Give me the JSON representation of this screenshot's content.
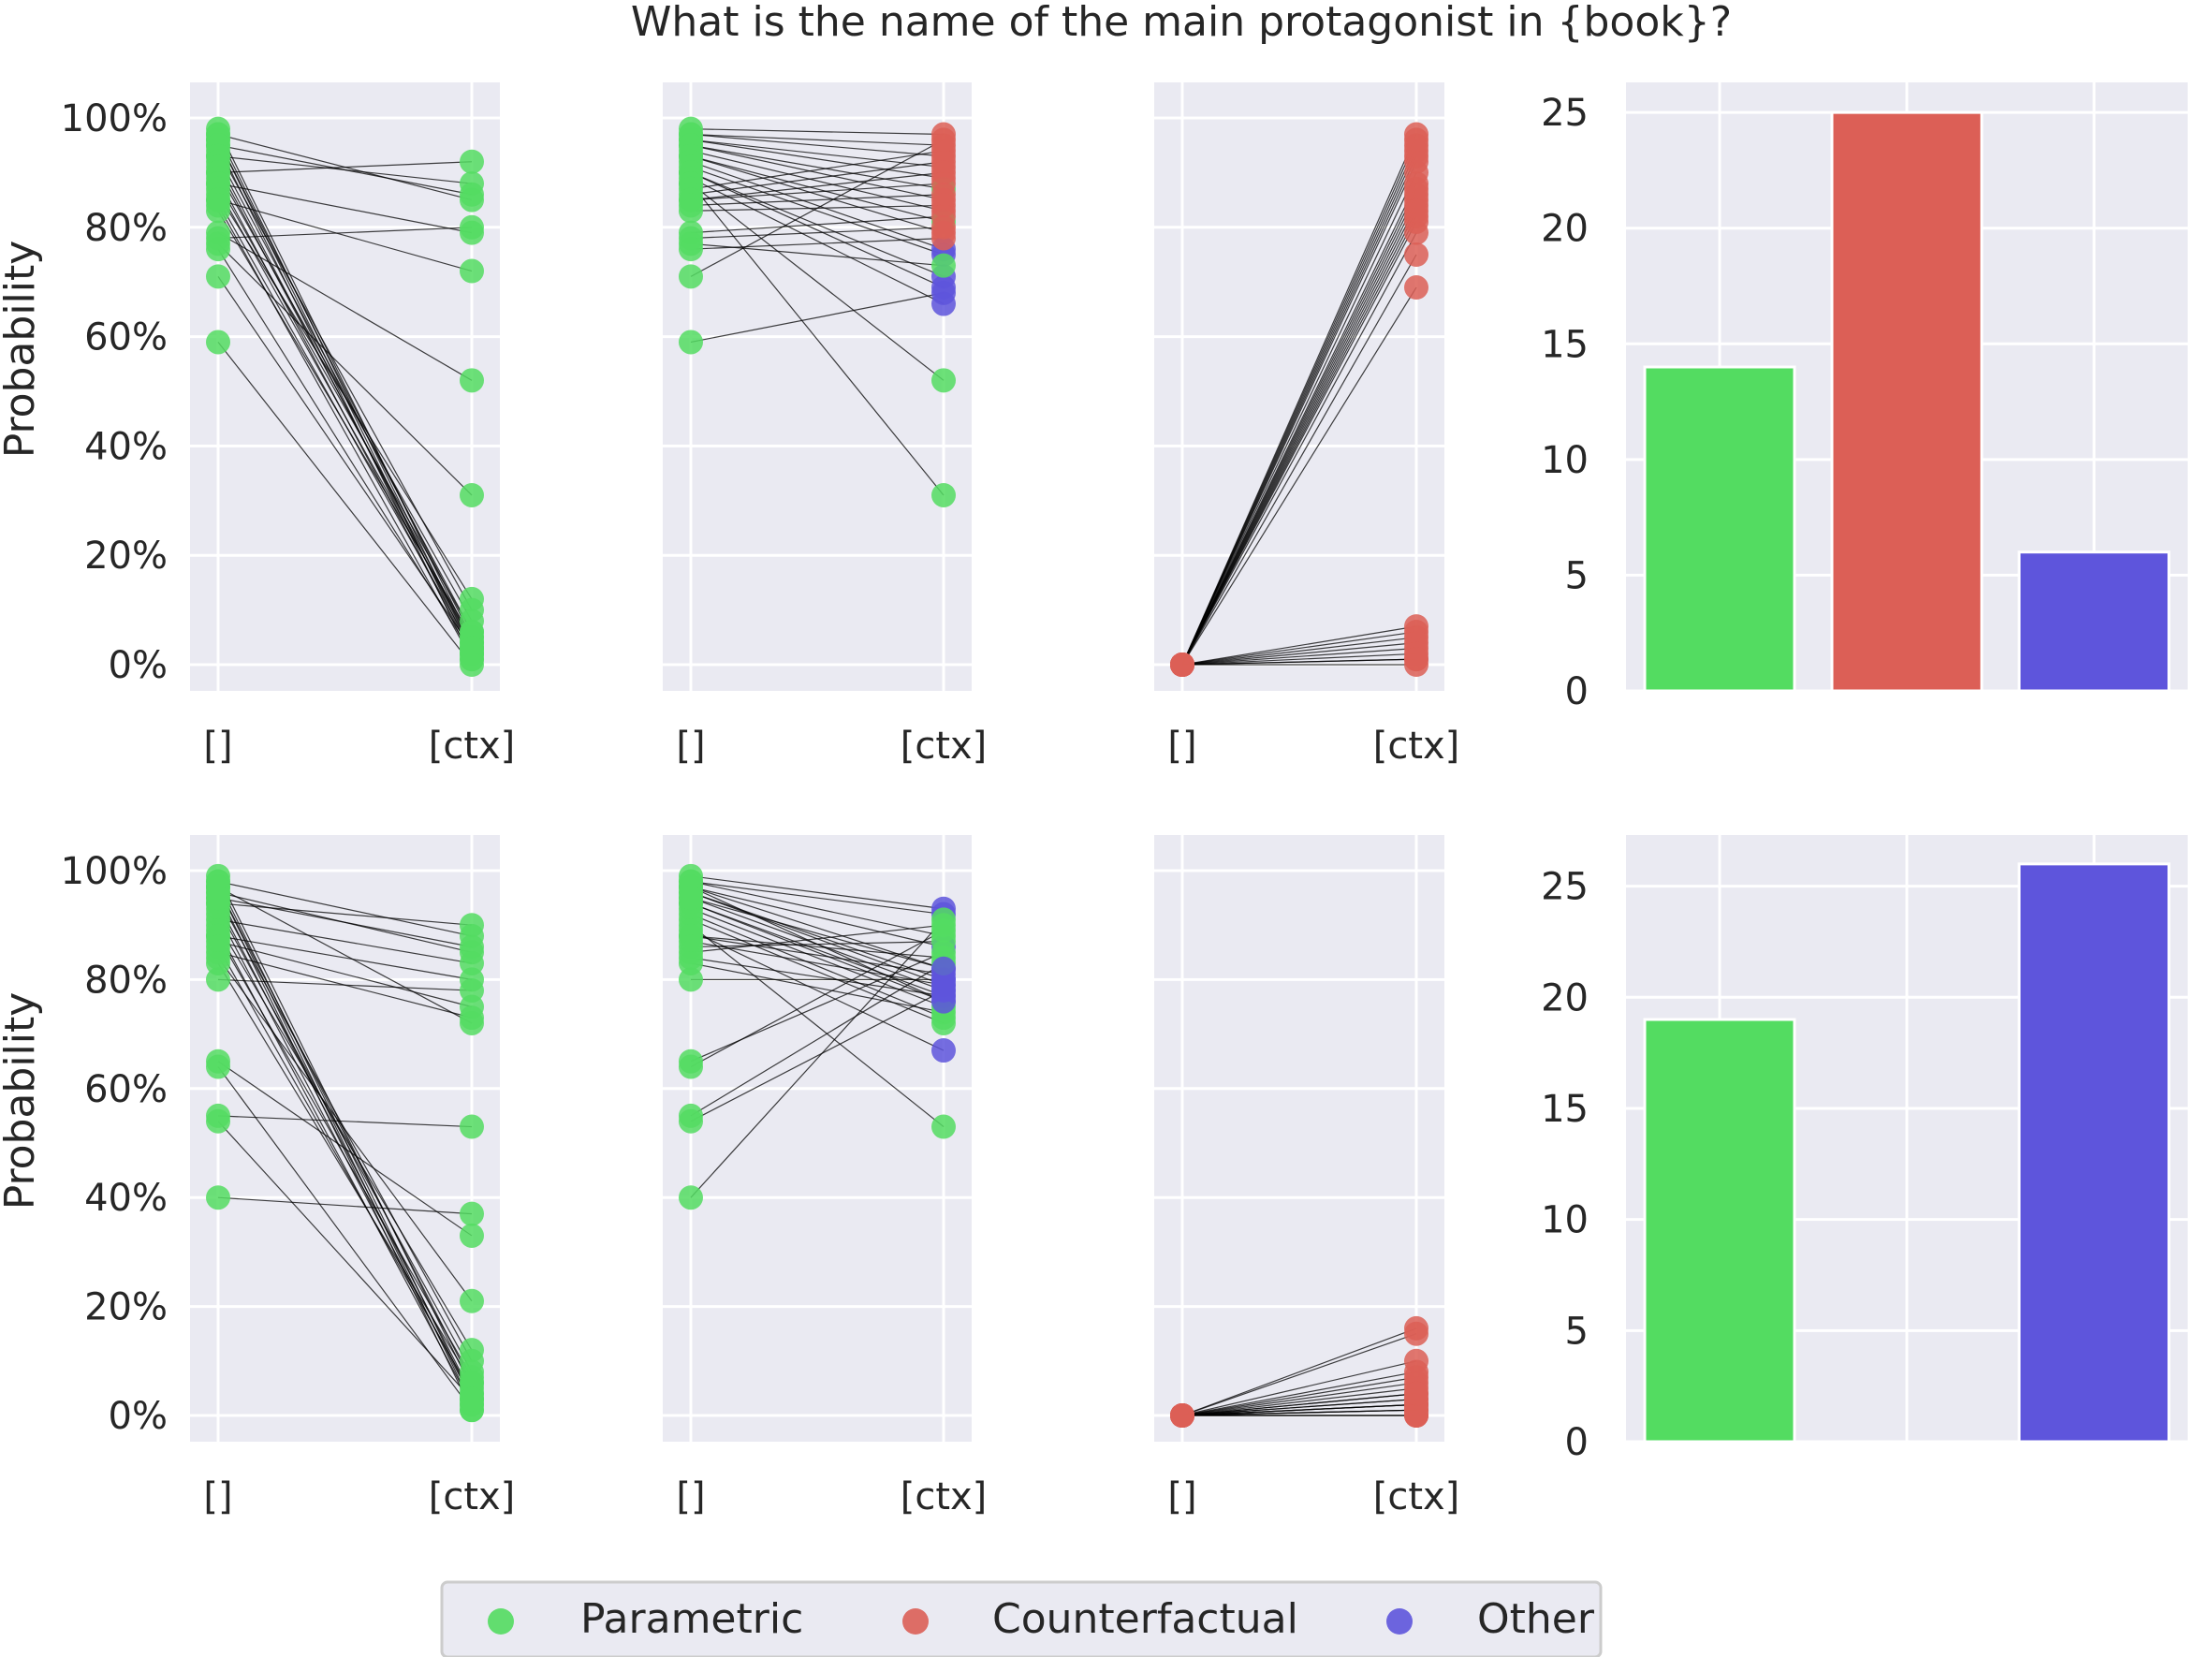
{
  "title": "What is the name of the main protagonist in {book}?",
  "colors": {
    "Parametric": "#53dc61",
    "Counterfactual": "#dc5f56",
    "Other": "#5e55dc",
    "panel_bg": "#eaeaf2",
    "grid": "#ffffff",
    "line": "#000000"
  },
  "legend": {
    "items": [
      {
        "label": "Parametric",
        "color": "#53dc61"
      },
      {
        "label": "Counterfactual",
        "color": "#dc5f56"
      },
      {
        "label": "Other",
        "color": "#5e55dc"
      }
    ]
  },
  "chart_data": [
    {
      "type": "scatter",
      "panel": "row1-col1",
      "ylabel": "Probability",
      "x_categories": [
        "[]",
        "[ctx]"
      ],
      "ylim": [
        0,
        100
      ],
      "yticks": [
        "0%",
        "20%",
        "40%",
        "60%",
        "80%",
        "100%"
      ],
      "grid": true,
      "pairs": [
        [
          98,
          4,
          "Parametric"
        ],
        [
          97,
          3,
          "Parametric"
        ],
        [
          97,
          85,
          "Parametric"
        ],
        [
          96,
          2,
          "Parametric"
        ],
        [
          96,
          5,
          "Parametric"
        ],
        [
          95,
          86,
          "Parametric"
        ],
        [
          95,
          1,
          "Parametric"
        ],
        [
          94,
          10,
          "Parametric"
        ],
        [
          93,
          6,
          "Parametric"
        ],
        [
          93,
          88,
          "Parametric"
        ],
        [
          92,
          3,
          "Parametric"
        ],
        [
          91,
          4,
          "Parametric"
        ],
        [
          90,
          8,
          "Parametric"
        ],
        [
          90,
          92,
          "Parametric"
        ],
        [
          89,
          2,
          "Parametric"
        ],
        [
          88,
          6,
          "Parametric"
        ],
        [
          88,
          79,
          "Parametric"
        ],
        [
          87,
          4,
          "Parametric"
        ],
        [
          86,
          12,
          "Parametric"
        ],
        [
          85,
          3,
          "Parametric"
        ],
        [
          85,
          72,
          "Parametric"
        ],
        [
          84,
          1,
          "Parametric"
        ],
        [
          83,
          5,
          "Parametric"
        ],
        [
          79,
          52,
          "Parametric"
        ],
        [
          78,
          80,
          "Parametric"
        ],
        [
          77,
          31,
          "Parametric"
        ],
        [
          76,
          2,
          "Parametric"
        ],
        [
          71,
          3,
          "Parametric"
        ],
        [
          59,
          0,
          "Parametric"
        ]
      ]
    },
    {
      "type": "scatter",
      "panel": "row1-col2",
      "x_categories": [
        "[]",
        "[ctx]"
      ],
      "ylim": [
        0,
        100
      ],
      "grid": true,
      "pairs": [
        [
          98,
          97,
          "Counterfactual"
        ],
        [
          97,
          95,
          "Counterfactual"
        ],
        [
          97,
          93,
          "Counterfactual"
        ],
        [
          96,
          91,
          "Counterfactual"
        ],
        [
          96,
          89,
          "Counterfactual"
        ],
        [
          95,
          87,
          "Parametric"
        ],
        [
          95,
          85,
          "Counterfactual"
        ],
        [
          94,
          83,
          "Counterfactual"
        ],
        [
          93,
          81,
          "Parametric"
        ],
        [
          93,
          79,
          "Counterfactual"
        ],
        [
          92,
          76,
          "Other"
        ],
        [
          91,
          75,
          "Other"
        ],
        [
          90,
          71,
          "Other"
        ],
        [
          90,
          69,
          "Other"
        ],
        [
          89,
          66,
          "Other"
        ],
        [
          88,
          52,
          "Parametric"
        ],
        [
          88,
          31,
          "Parametric"
        ],
        [
          87,
          94,
          "Counterfactual"
        ],
        [
          86,
          92,
          "Counterfactual"
        ],
        [
          85,
          90,
          "Counterfactual"
        ],
        [
          85,
          88,
          "Counterfactual"
        ],
        [
          84,
          86,
          "Counterfactual"
        ],
        [
          83,
          84,
          "Counterfactual"
        ],
        [
          79,
          82,
          "Counterfactual"
        ],
        [
          78,
          80,
          "Counterfactual"
        ],
        [
          77,
          73,
          "Parametric"
        ],
        [
          76,
          78,
          "Counterfactual"
        ],
        [
          71,
          96,
          "Counterfactual"
        ],
        [
          59,
          68,
          "Other"
        ]
      ]
    },
    {
      "type": "scatter",
      "panel": "row1-col3",
      "x_categories": [
        "[]",
        "[ctx]"
      ],
      "ylim": [
        0,
        100
      ],
      "grid": true,
      "pairs": [
        [
          0,
          97,
          "Counterfactual"
        ],
        [
          0,
          95,
          "Counterfactual"
        ],
        [
          0,
          93,
          "Counterfactual"
        ],
        [
          0,
          92,
          "Counterfactual"
        ],
        [
          0,
          90,
          "Counterfactual"
        ],
        [
          0,
          88,
          "Counterfactual"
        ],
        [
          0,
          86,
          "Counterfactual"
        ],
        [
          0,
          85,
          "Counterfactual"
        ],
        [
          0,
          84,
          "Counterfactual"
        ],
        [
          0,
          82,
          "Counterfactual"
        ],
        [
          0,
          81,
          "Counterfactual"
        ],
        [
          0,
          79,
          "Counterfactual"
        ],
        [
          0,
          75,
          "Counterfactual"
        ],
        [
          0,
          69,
          "Counterfactual"
        ],
        [
          0,
          94,
          "Counterfactual"
        ],
        [
          0,
          96,
          "Counterfactual"
        ],
        [
          0,
          87,
          "Counterfactual"
        ],
        [
          0,
          83,
          "Counterfactual"
        ],
        [
          0,
          7,
          "Counterfactual"
        ],
        [
          0,
          6,
          "Counterfactual"
        ],
        [
          0,
          5,
          "Counterfactual"
        ],
        [
          0,
          4,
          "Counterfactual"
        ],
        [
          0,
          3,
          "Counterfactual"
        ],
        [
          0,
          2,
          "Counterfactual"
        ],
        [
          0,
          1,
          "Counterfactual"
        ],
        [
          0,
          0,
          "Counterfactual"
        ],
        [
          0,
          1,
          "Counterfactual"
        ]
      ]
    },
    {
      "type": "bar",
      "panel": "row1-col4",
      "categories": [
        "Parametric",
        "Counterfactual",
        "Other"
      ],
      "values": [
        14,
        25,
        6
      ],
      "ylim": [
        0,
        26.3
      ],
      "yticks": [
        "0",
        "5",
        "10",
        "15",
        "20",
        "25"
      ],
      "grid": true
    },
    {
      "type": "scatter",
      "panel": "row2-col1",
      "ylabel": "Probability",
      "x_categories": [
        "[]",
        "[ctx]"
      ],
      "ylim": [
        0,
        100
      ],
      "yticks": [
        "0%",
        "20%",
        "40%",
        "60%",
        "80%",
        "100%"
      ],
      "grid": true,
      "pairs": [
        [
          99,
          5,
          "Parametric"
        ],
        [
          98,
          3,
          "Parametric"
        ],
        [
          98,
          88,
          "Parametric"
        ],
        [
          97,
          2,
          "Parametric"
        ],
        [
          97,
          6,
          "Parametric"
        ],
        [
          96,
          85,
          "Parametric"
        ],
        [
          96,
          1,
          "Parametric"
        ],
        [
          95,
          10,
          "Parametric"
        ],
        [
          94,
          4,
          "Parametric"
        ],
        [
          94,
          90,
          "Parametric"
        ],
        [
          93,
          8,
          "Parametric"
        ],
        [
          92,
          3,
          "Parametric"
        ],
        [
          91,
          83,
          "Parametric"
        ],
        [
          90,
          12,
          "Parametric"
        ],
        [
          89,
          2,
          "Parametric"
        ],
        [
          88,
          80,
          "Parametric"
        ],
        [
          88,
          7,
          "Parametric"
        ],
        [
          87,
          75,
          "Parametric"
        ],
        [
          86,
          4,
          "Parametric"
        ],
        [
          85,
          73,
          "Parametric"
        ],
        [
          84,
          21,
          "Parametric"
        ],
        [
          83,
          6,
          "Parametric"
        ],
        [
          80,
          78,
          "Parametric"
        ],
        [
          65,
          33,
          "Parametric"
        ],
        [
          64,
          1,
          "Parametric"
        ],
        [
          55,
          53,
          "Parametric"
        ],
        [
          54,
          3,
          "Parametric"
        ],
        [
          40,
          37,
          "Parametric"
        ],
        [
          97,
          72,
          "Parametric"
        ],
        [
          95,
          86,
          "Parametric"
        ]
      ]
    },
    {
      "type": "scatter",
      "panel": "row2-col2",
      "x_categories": [
        "[]",
        "[ctx]"
      ],
      "ylim": [
        0,
        100
      ],
      "grid": true,
      "pairs": [
        [
          99,
          93,
          "Other"
        ],
        [
          98,
          92,
          "Other"
        ],
        [
          98,
          88,
          "Parametric"
        ],
        [
          97,
          86,
          "Other"
        ],
        [
          97,
          82,
          "Other"
        ],
        [
          96,
          80,
          "Other"
        ],
        [
          96,
          79,
          "Other"
        ],
        [
          95,
          78,
          "Other"
        ],
        [
          94,
          77,
          "Other"
        ],
        [
          94,
          76,
          "Other"
        ],
        [
          93,
          75,
          "Parametric"
        ],
        [
          92,
          73,
          "Parametric"
        ],
        [
          91,
          72,
          "Parametric"
        ],
        [
          90,
          53,
          "Parametric"
        ],
        [
          89,
          67,
          "Other"
        ],
        [
          88,
          81,
          "Other"
        ],
        [
          88,
          84,
          "Parametric"
        ],
        [
          87,
          79,
          "Other"
        ],
        [
          86,
          87,
          "Parametric"
        ],
        [
          85,
          90,
          "Parametric"
        ],
        [
          84,
          77,
          "Other"
        ],
        [
          83,
          74,
          "Parametric"
        ],
        [
          80,
          80,
          "Other"
        ],
        [
          65,
          85,
          "Parametric"
        ],
        [
          64,
          89,
          "Parametric"
        ],
        [
          55,
          83,
          "Parametric"
        ],
        [
          54,
          78,
          "Other"
        ],
        [
          40,
          91,
          "Parametric"
        ],
        [
          97,
          76,
          "Other"
        ],
        [
          95,
          82,
          "Other"
        ]
      ]
    },
    {
      "type": "scatter",
      "panel": "row2-col3",
      "x_categories": [
        "[]",
        "[ctx]"
      ],
      "ylim": [
        0,
        100
      ],
      "grid": true,
      "pairs": [
        [
          0,
          16,
          "Counterfactual"
        ],
        [
          0,
          15,
          "Counterfactual"
        ],
        [
          0,
          10,
          "Counterfactual"
        ],
        [
          0,
          8,
          "Counterfactual"
        ],
        [
          0,
          7,
          "Counterfactual"
        ],
        [
          0,
          6,
          "Counterfactual"
        ],
        [
          0,
          5,
          "Counterfactual"
        ],
        [
          0,
          4,
          "Counterfactual"
        ],
        [
          0,
          3,
          "Counterfactual"
        ],
        [
          0,
          3,
          "Counterfactual"
        ],
        [
          0,
          2,
          "Counterfactual"
        ],
        [
          0,
          2,
          "Counterfactual"
        ],
        [
          0,
          1,
          "Counterfactual"
        ],
        [
          0,
          1,
          "Counterfactual"
        ],
        [
          0,
          0,
          "Counterfactual"
        ],
        [
          0,
          0,
          "Counterfactual"
        ],
        [
          0,
          0,
          "Counterfactual"
        ],
        [
          0,
          1,
          "Counterfactual"
        ],
        [
          0,
          2,
          "Counterfactual"
        ],
        [
          0,
          4,
          "Counterfactual"
        ]
      ]
    },
    {
      "type": "bar",
      "panel": "row2-col4",
      "categories": [
        "Parametric",
        "Counterfactual",
        "Other"
      ],
      "values": [
        19,
        0,
        26
      ],
      "ylim": [
        0,
        27.3
      ],
      "yticks": [
        "0",
        "5",
        "10",
        "15",
        "20",
        "25"
      ],
      "grid": true
    }
  ]
}
